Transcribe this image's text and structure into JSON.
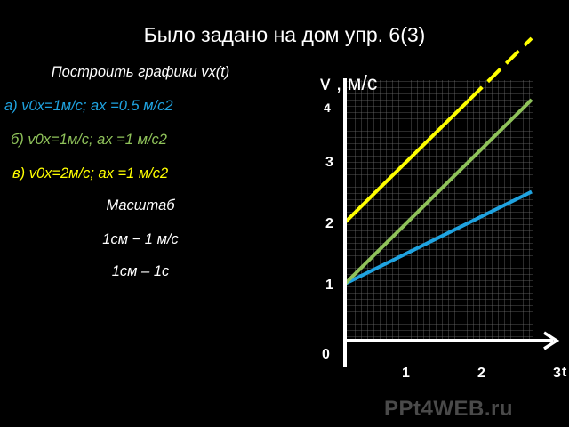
{
  "title": "Было задано на дом упр. 6(3)",
  "task": {
    "heading": "Построить графики vx(t)",
    "items": [
      {
        "text": "а) v0x=1м/с;   ax =0.5 м/с2",
        "color": "#1fa3e0"
      },
      {
        "text": "б) v0x=1м/с;   ax =1 м/с2",
        "color": "#8fc25a"
      },
      {
        "text": "в) v0x=2м/с;   ax =1 м/с2",
        "color": "#ffff00"
      }
    ],
    "scale_label": "Масштаб",
    "scale_lines": [
      "1см  − 1 м/с",
      "1см – 1с"
    ]
  },
  "chart_data": {
    "type": "line",
    "ylabel": "v , м/с",
    "xlabel": "t",
    "x_ticks": [
      "0",
      "1",
      "2",
      "3"
    ],
    "y_ticks": [
      "1",
      "2",
      "3",
      "4"
    ],
    "xlim": [
      0,
      3
    ],
    "ylim": [
      0,
      4
    ],
    "grid": true,
    "series": [
      {
        "color": "#1fa3e0",
        "x": [
          0,
          3
        ],
        "y": [
          1,
          2.5
        ]
      },
      {
        "color": "#8fc25a",
        "x": [
          0,
          3
        ],
        "y": [
          1,
          4
        ]
      },
      {
        "color": "#ffff00",
        "x": [
          0,
          2
        ],
        "y": [
          2,
          4
        ]
      },
      {
        "color": "#ffff00",
        "style": "dashed",
        "x": [
          2,
          3
        ],
        "y": [
          4,
          5
        ]
      }
    ]
  },
  "watermark": "PPt4WEB.ru"
}
